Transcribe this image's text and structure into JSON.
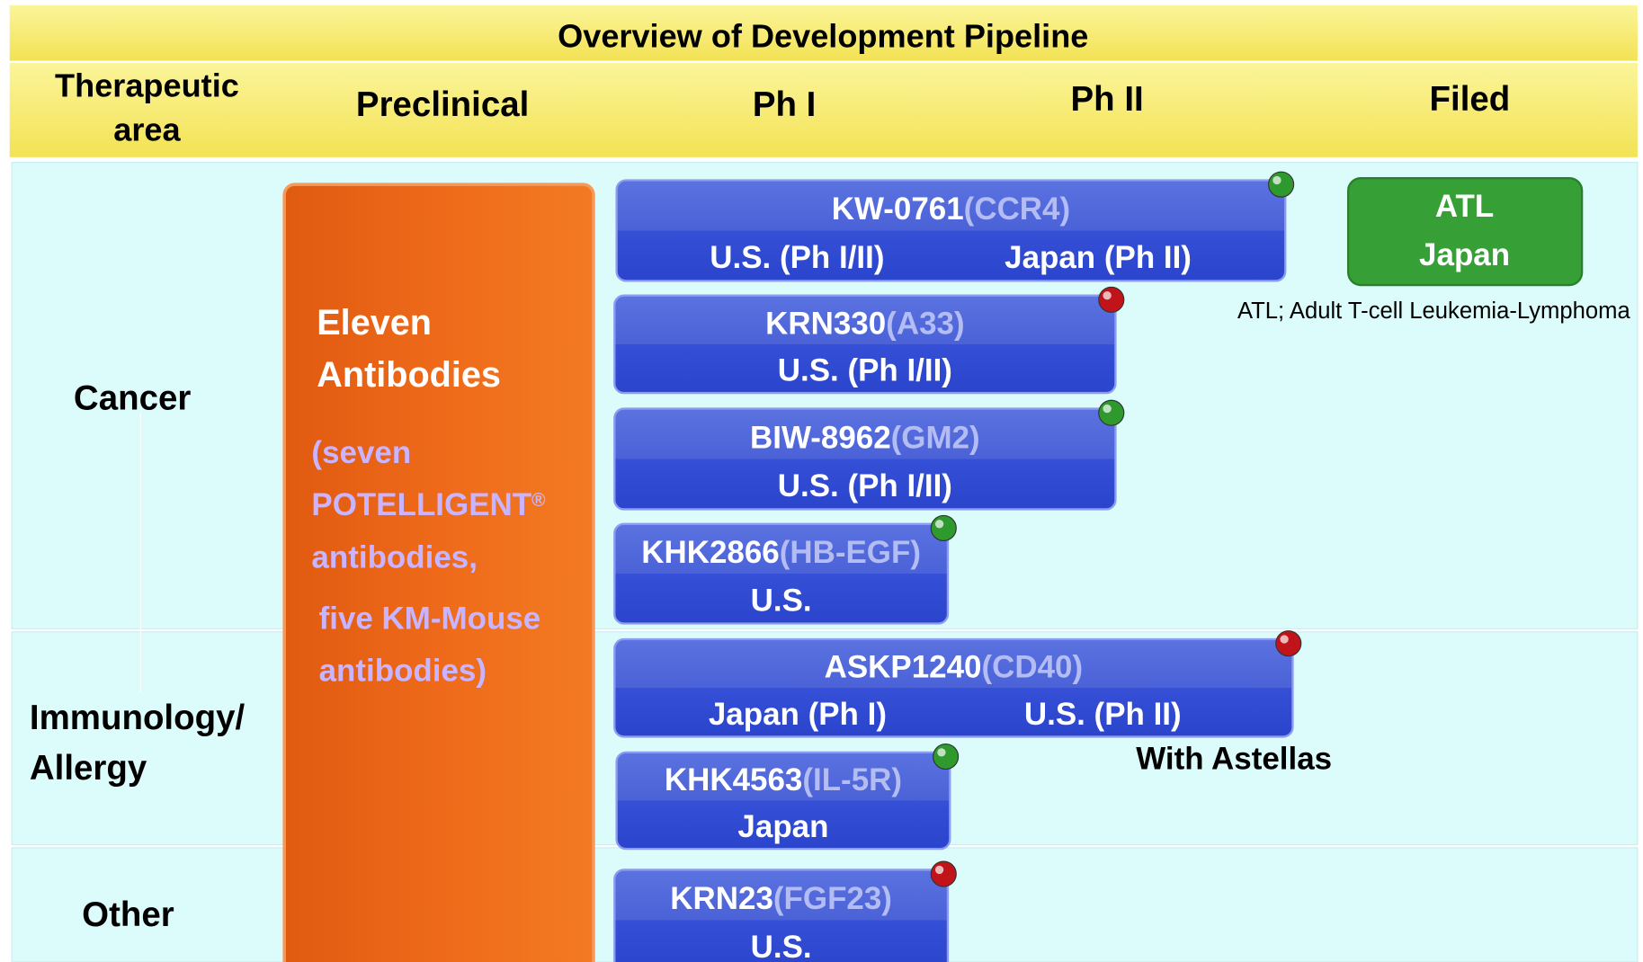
{
  "title": "Overview of Development Pipeline",
  "headers": {
    "area": [
      "Therapeutic",
      "area"
    ],
    "preclinical": "Preclinical",
    "ph1": "Ph I",
    "ph2": "Ph II",
    "filed": "Filed"
  },
  "areas": [
    [
      "Cancer"
    ],
    [
      "Immunology/",
      "Allergy"
    ],
    [
      "Other"
    ]
  ],
  "preclinical": {
    "heading": [
      "Eleven",
      "Antibodies"
    ],
    "detail": [
      "(seven",
      "POTELLIGENT",
      "antibodies,",
      "five KM-Mouse",
      "antibodies)"
    ],
    "mark": "®"
  },
  "drugs": [
    {
      "name": "KW-0761",
      "target": "(CCR4)",
      "regions": [
        "U.S. (Ph I/II)",
        "Japan (Ph II)"
      ],
      "dot": "#2e9a2e"
    },
    {
      "name": "KRN330",
      "target": "(A33)",
      "regions": [
        "U.S. (Ph I/II)"
      ],
      "dot": "#c0141a"
    },
    {
      "name": "BIW-8962",
      "target": "(GM2)",
      "regions": [
        "U.S. (Ph I/II)"
      ],
      "dot": "#2e9a2e"
    },
    {
      "name": "KHK2866",
      "target": "(HB-EGF)",
      "regions": [
        "U.S."
      ],
      "dot": "#2e9a2e"
    },
    {
      "name": "ASKP1240",
      "target": "(CD40)",
      "regions": [
        "Japan (Ph I)",
        "U.S. (Ph II)"
      ],
      "dot": "#c0141a"
    },
    {
      "name": "KHK4563",
      "target": "(IL-5R)",
      "regions": [
        "Japan"
      ],
      "dot": "#2e9a2e"
    },
    {
      "name": "KRN23",
      "target": "(FGF23)",
      "regions": [
        "U.S."
      ],
      "dot": "#c0141a"
    }
  ],
  "filed": [
    "ATL",
    "Japan"
  ],
  "footnote": "ATL; Adult T-cell Leukemia-Lymphoma",
  "partner": "With Astellas"
}
